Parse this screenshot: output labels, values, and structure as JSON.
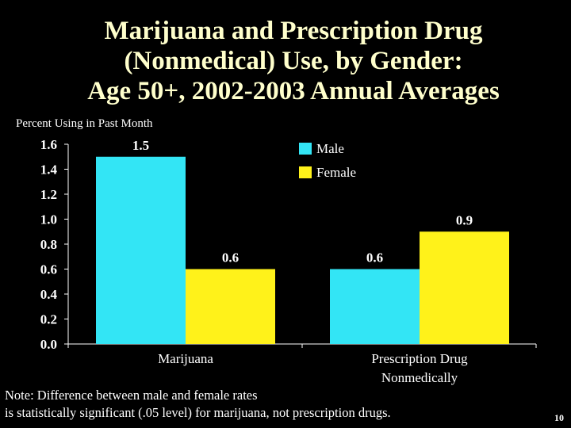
{
  "slide": {
    "title_lines": [
      "Marijuana and Prescription Drug",
      "(Nonmedical) Use, by Gender:",
      "Age 50+, 2002-2003 Annual Averages"
    ],
    "note_lines": [
      "Note: Difference between male and female rates",
      "is statistically significant (.05 level) for marijuana, not prescription drugs."
    ],
    "page_number": "10"
  },
  "chart_data": {
    "type": "bar",
    "ylabel": "Percent Using in Past Month",
    "ylim": [
      0,
      1.6
    ],
    "yticks": [
      "0.0",
      "0.2",
      "0.4",
      "0.6",
      "0.8",
      "1.0",
      "1.2",
      "1.4",
      "1.6"
    ],
    "categories": [
      [
        "Marijuana"
      ],
      [
        "Prescription Drug",
        "Nonmedically"
      ]
    ],
    "series": [
      {
        "name": "Male",
        "values": [
          1.5,
          0.6
        ],
        "labels": [
          "1.5",
          "0.6"
        ],
        "color": "#33E5F5"
      },
      {
        "name": "Female",
        "values": [
          0.6,
          0.9
        ],
        "labels": [
          "0.6",
          "0.9"
        ],
        "color": "#FFF21A"
      }
    ],
    "legend_position": "top-right",
    "grid": false
  }
}
